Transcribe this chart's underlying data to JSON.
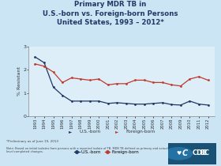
{
  "title_line1": "Primary MDR TB in",
  "title_line2": "U.S.-born vs. Foreign-born Persons",
  "title_line3": "United States, 1993 – 2012*",
  "years": [
    1993,
    1994,
    1995,
    1996,
    1997,
    1998,
    1999,
    2000,
    2001,
    2002,
    2003,
    2004,
    2005,
    2006,
    2007,
    2008,
    2009,
    2010,
    2011,
    2012
  ],
  "us_born": [
    2.55,
    2.3,
    1.25,
    0.9,
    0.65,
    0.65,
    0.65,
    0.65,
    0.55,
    0.58,
    0.55,
    0.52,
    0.52,
    0.55,
    0.58,
    0.5,
    0.48,
    0.65,
    0.52,
    0.48
  ],
  "foreign_born": [
    2.25,
    2.15,
    1.9,
    1.45,
    1.65,
    1.6,
    1.55,
    1.6,
    1.35,
    1.4,
    1.4,
    1.55,
    1.55,
    1.45,
    1.45,
    1.35,
    1.3,
    1.6,
    1.7,
    1.55
  ],
  "us_born_color": "#1f3864",
  "foreign_born_color": "#c0392b",
  "bg_color": "#cce5f5",
  "plot_bg_color": "#ddeef8",
  "ylim": [
    0,
    3
  ],
  "yticks": [
    0,
    1,
    2,
    3
  ],
  "ylabel": "% Resistant",
  "footnote": "*Preliminary as of June 19, 2013",
  "note": "Note: Based on initial isolates from persons with a reported isolate of TB. MDR TB defined as primary and actual\nlevel completed changes.",
  "legend_us": "U.S.-born",
  "legend_fb": "Foreign-born",
  "title_color": "#1f3864",
  "cdc_bg": "#1a5276"
}
